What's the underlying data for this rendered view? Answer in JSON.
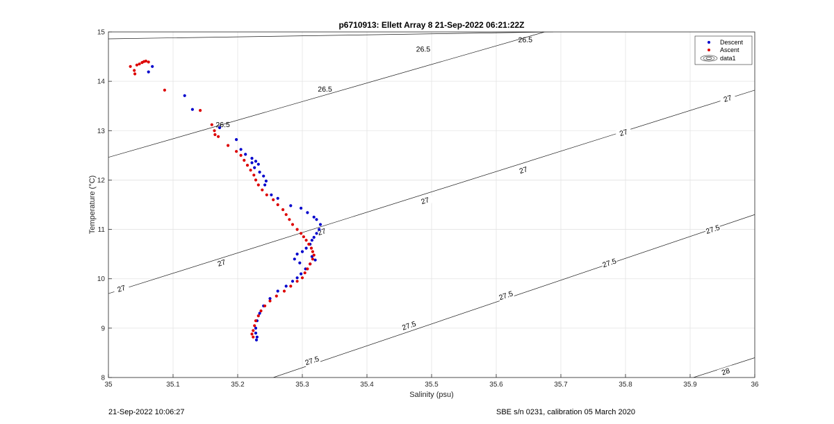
{
  "chart_data": {
    "type": "scatter",
    "title": "p6710913: Ellett Array 8 21-Sep-2022 06:21:22Z",
    "xlabel": "Salinity (psu)",
    "ylabel": "Temperature (°C)",
    "xlim": [
      35,
      36
    ],
    "ylim": [
      8,
      15
    ],
    "xticks": [
      "35",
      "35.1",
      "35.2",
      "35.3",
      "35.4",
      "35.5",
      "35.6",
      "35.7",
      "35.8",
      "35.9",
      "36"
    ],
    "yticks": [
      "8",
      "9",
      "10",
      "11",
      "12",
      "13",
      "14",
      "15"
    ],
    "grid": true,
    "legend_position": "top-right",
    "legend": [
      "Descent",
      "Ascent",
      "data1"
    ],
    "series": [
      {
        "name": "Descent",
        "color": "#0000cc",
        "points": [
          [
            35.068,
            14.3
          ],
          [
            35.062,
            14.19
          ],
          [
            35.118,
            13.71
          ],
          [
            35.13,
            13.43
          ],
          [
            35.172,
            13.06
          ],
          [
            35.198,
            12.82
          ],
          [
            35.205,
            12.62
          ],
          [
            35.212,
            12.52
          ],
          [
            35.222,
            12.44
          ],
          [
            35.228,
            12.38
          ],
          [
            35.222,
            12.35
          ],
          [
            35.232,
            12.32
          ],
          [
            35.226,
            12.25
          ],
          [
            35.234,
            12.16
          ],
          [
            35.24,
            12.08
          ],
          [
            35.244,
            11.98
          ],
          [
            35.242,
            11.9
          ],
          [
            35.252,
            11.7
          ],
          [
            35.262,
            11.63
          ],
          [
            35.282,
            11.48
          ],
          [
            35.298,
            11.43
          ],
          [
            35.308,
            11.34
          ],
          [
            35.318,
            11.25
          ],
          [
            35.322,
            11.2
          ],
          [
            35.328,
            11.1
          ],
          [
            35.326,
            11.0
          ],
          [
            35.322,
            10.92
          ],
          [
            35.318,
            10.84
          ],
          [
            35.315,
            10.78
          ],
          [
            35.312,
            10.7
          ],
          [
            35.306,
            10.62
          ],
          [
            35.3,
            10.55
          ],
          [
            35.292,
            10.5
          ],
          [
            35.288,
            10.4
          ],
          [
            35.296,
            10.32
          ],
          [
            35.315,
            10.45
          ],
          [
            35.32,
            10.38
          ],
          [
            35.312,
            10.3
          ],
          [
            35.305,
            10.2
          ],
          [
            35.298,
            10.1
          ],
          [
            35.292,
            10.02
          ],
          [
            35.285,
            9.95
          ],
          [
            35.275,
            9.85
          ],
          [
            35.262,
            9.75
          ],
          [
            35.25,
            9.6
          ],
          [
            35.24,
            9.45
          ],
          [
            35.234,
            9.3
          ],
          [
            35.23,
            9.15
          ],
          [
            35.228,
            9.0
          ],
          [
            35.228,
            8.9
          ],
          [
            35.23,
            8.82
          ],
          [
            35.229,
            8.76
          ]
        ]
      },
      {
        "name": "Ascent",
        "color": "#dd0000",
        "points": [
          [
            35.034,
            14.3
          ],
          [
            35.04,
            14.22
          ],
          [
            35.041,
            14.15
          ],
          [
            35.044,
            14.33
          ],
          [
            35.048,
            14.35
          ],
          [
            35.052,
            14.38
          ],
          [
            35.055,
            14.4
          ],
          [
            35.058,
            14.41
          ],
          [
            35.062,
            14.39
          ],
          [
            35.087,
            13.82
          ],
          [
            35.142,
            13.41
          ],
          [
            35.16,
            13.12
          ],
          [
            35.164,
            13.0
          ],
          [
            35.165,
            12.92
          ],
          [
            35.17,
            12.88
          ],
          [
            35.185,
            12.7
          ],
          [
            35.198,
            12.58
          ],
          [
            35.205,
            12.5
          ],
          [
            35.21,
            12.4
          ],
          [
            35.215,
            12.3
          ],
          [
            35.22,
            12.2
          ],
          [
            35.225,
            12.1
          ],
          [
            35.228,
            12.0
          ],
          [
            35.232,
            11.9
          ],
          [
            35.238,
            11.8
          ],
          [
            35.245,
            11.7
          ],
          [
            35.255,
            11.6
          ],
          [
            35.262,
            11.5
          ],
          [
            35.27,
            11.4
          ],
          [
            35.275,
            11.3
          ],
          [
            35.28,
            11.2
          ],
          [
            35.285,
            11.1
          ],
          [
            35.292,
            11.0
          ],
          [
            35.298,
            10.92
          ],
          [
            35.302,
            10.85
          ],
          [
            35.306,
            10.78
          ],
          [
            35.31,
            10.7
          ],
          [
            35.314,
            10.62
          ],
          [
            35.316,
            10.55
          ],
          [
            35.318,
            10.48
          ],
          [
            35.316,
            10.4
          ],
          [
            35.312,
            10.3
          ],
          [
            35.308,
            10.2
          ],
          [
            35.304,
            10.12
          ],
          [
            35.3,
            10.02
          ],
          [
            35.292,
            9.95
          ],
          [
            35.282,
            9.85
          ],
          [
            35.272,
            9.75
          ],
          [
            35.26,
            9.65
          ],
          [
            35.25,
            9.55
          ],
          [
            35.242,
            9.45
          ],
          [
            35.236,
            9.35
          ],
          [
            35.232,
            9.25
          ],
          [
            35.228,
            9.15
          ],
          [
            35.226,
            9.05
          ],
          [
            35.224,
            8.95
          ],
          [
            35.222,
            8.88
          ],
          [
            35.224,
            8.82
          ]
        ]
      }
    ],
    "contours": [
      {
        "label": "26.5",
        "points": [
          [
            35.0,
            14.86
          ],
          [
            35.688,
            15.0
          ]
        ],
        "labels_at": [
          [
            35.645,
            14.84
          ],
          [
            35.487,
            14.65
          ],
          [
            35.335,
            13.84
          ],
          [
            35.177,
            13.12
          ]
        ]
      },
      {
        "label": "26.5",
        "points": [
          [
            35.0,
            12.46
          ],
          [
            35.675,
            15.0
          ]
        ],
        "labels_at": []
      },
      {
        "label": "27",
        "points": [
          [
            35.0,
            9.7
          ],
          [
            36.0,
            13.82
          ]
        ],
        "labels_at": [
          [
            35.958,
            13.65
          ],
          [
            35.797,
            12.96
          ],
          [
            35.642,
            12.2
          ],
          [
            35.49,
            11.58
          ],
          [
            35.33,
            10.95
          ],
          [
            35.175,
            10.32
          ],
          [
            35.02,
            9.8
          ]
        ]
      },
      {
        "label": "27.5",
        "points": [
          [
            35.255,
            8.0
          ],
          [
            36.0,
            11.3
          ]
        ],
        "labels_at": [
          [
            35.935,
            11.0
          ],
          [
            35.775,
            10.32
          ],
          [
            35.615,
            9.66
          ],
          [
            35.465,
            9.05
          ],
          [
            35.315,
            8.34
          ]
        ]
      },
      {
        "label": "28",
        "points": [
          [
            35.905,
            8.0
          ],
          [
            36.0,
            8.4
          ]
        ],
        "labels_at": [
          [
            35.955,
            8.12
          ]
        ]
      }
    ]
  },
  "footer": {
    "left": "21-Sep-2022 10:06:27",
    "right": "SBE s/n 0231, calibration 05 March 2020"
  }
}
